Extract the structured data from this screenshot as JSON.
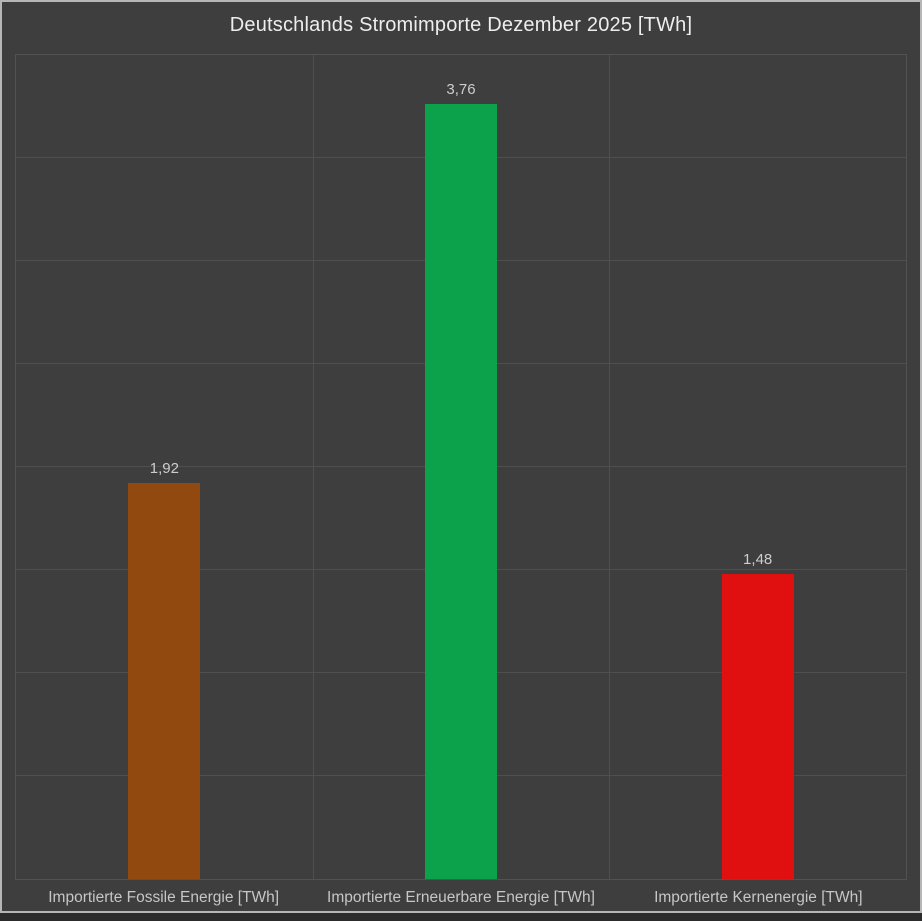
{
  "title": "Deutschlands Stromimporte Dezember 2025 [TWh]",
  "colors": {
    "chart_background": "#3e3e3e",
    "outer_background": "#2c2c2c",
    "frame_border": "#b6b6b6",
    "gridline": "#4f4f4f",
    "plot_border": "#525252",
    "title_text": "#ededed",
    "value_label_text": "#cdcdcd",
    "category_label_text": "#c6c6c6"
  },
  "chart_data": {
    "type": "bar",
    "title": "Deutschlands Stromimporte Dezember 2025 [TWh]",
    "categories": [
      "Importierte Fossile Energie [TWh]",
      "Importierte Erneuerbare Energie [TWh]",
      "Importierte Kernenergie [TWh]"
    ],
    "values": [
      1.92,
      3.76,
      1.48
    ],
    "value_labels": [
      "1,92",
      "3,76",
      "1,48"
    ],
    "bar_colors": [
      "#91490f",
      "#0ca24c",
      "#e01010"
    ],
    "xlabel": "",
    "ylabel": "",
    "ylim": [
      0,
      4
    ],
    "gridline_step": 0.5,
    "grid": true,
    "legend": "none",
    "y_tick_labels_visible": false
  }
}
